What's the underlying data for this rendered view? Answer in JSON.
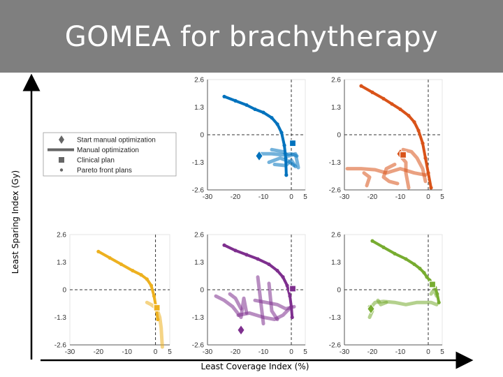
{
  "title": "GOMEA for brachytherapy",
  "y_axis_label": "Least Sparing Index (Gy)",
  "x_axis_label": "Least Coverage Index (%)",
  "legend": {
    "items": [
      {
        "label": "Start manual optimization",
        "marker": "diamond"
      },
      {
        "label": "Manual optimization",
        "marker": "line"
      },
      {
        "label": "Clinical plan",
        "marker": "square"
      },
      {
        "label": "Pareto front plans",
        "marker": "dot"
      }
    ]
  },
  "chart_data": [
    {
      "type": "scatter",
      "panel": "top-left",
      "color": "#0072bd",
      "xlim": [
        -30,
        5
      ],
      "ylim": [
        -2.6,
        2.6
      ],
      "xticks": [
        "-30",
        "-20",
        "-10",
        "0",
        "5"
      ],
      "yticks": [
        "2.6",
        "1.3",
        "0",
        "-1.3",
        "-2.6"
      ],
      "grid": false,
      "show_x_axis": true,
      "show_y_axis": true,
      "pareto_front": [
        [
          -24,
          1.8
        ],
        [
          -20,
          1.6
        ],
        [
          -16,
          1.4
        ],
        [
          -13,
          1.2
        ],
        [
          -10,
          1.05
        ],
        [
          -7,
          0.8
        ],
        [
          -5,
          0.5
        ],
        [
          -3.5,
          0.1
        ],
        [
          -2.5,
          -0.5
        ],
        [
          -2,
          -1.1
        ],
        [
          -1.8,
          -1.9
        ]
      ],
      "manual_optimization": [
        [
          [
            -11,
            -0.9
          ],
          [
            -7,
            -0.9
          ],
          [
            -3,
            -0.95
          ],
          [
            0,
            -0.9
          ],
          [
            2,
            -1.0
          ]
        ],
        [
          [
            -8,
            -1.3
          ],
          [
            -4,
            -1.1
          ],
          [
            -1,
            -1.25
          ],
          [
            1,
            -1.45
          ]
        ],
        [
          [
            -6,
            -1.4
          ],
          [
            -2,
            -1.45
          ],
          [
            0,
            -1.2
          ],
          [
            1.5,
            -1.5
          ]
        ],
        [
          [
            -7,
            -0.7
          ],
          [
            -3,
            -0.8
          ],
          [
            -1,
            -1.0
          ],
          [
            1.5,
            -0.9
          ],
          [
            2.5,
            -1.55
          ]
        ]
      ],
      "start_manual_optimization": [
        -11.5,
        -1.0
      ],
      "clinical_plan": [
        0.5,
        -0.4
      ]
    },
    {
      "type": "scatter",
      "panel": "top-right",
      "color": "#d95319",
      "xlim": [
        -30,
        5
      ],
      "ylim": [
        -2.6,
        2.6
      ],
      "xticks": [
        "-30",
        "-20",
        "-10",
        "0",
        "5"
      ],
      "yticks": [
        "2.6",
        "1.3",
        "0",
        "-1.3",
        "-2.6"
      ],
      "grid": false,
      "show_x_axis": true,
      "show_y_axis": true,
      "pareto_front": [
        [
          -24,
          2.3
        ],
        [
          -20,
          2.0
        ],
        [
          -16,
          1.7
        ],
        [
          -13,
          1.45
        ],
        [
          -10,
          1.2
        ],
        [
          -7,
          0.9
        ],
        [
          -5,
          0.6
        ],
        [
          -3.5,
          0.2
        ],
        [
          -2,
          -0.4
        ],
        [
          -1,
          -1.1
        ],
        [
          0,
          -1.8
        ],
        [
          1,
          -2.5
        ]
      ],
      "manual_optimization": [
        [
          [
            -29,
            -1.6
          ],
          [
            -24,
            -1.6
          ],
          [
            -19,
            -1.65
          ],
          [
            -15,
            -1.8
          ],
          [
            -10,
            -1.6
          ],
          [
            -5,
            -1.8
          ],
          [
            -1,
            -1.9
          ]
        ],
        [
          [
            -23,
            -1.8
          ],
          [
            -21,
            -2.0
          ],
          [
            -22,
            -2.4
          ]
        ],
        [
          [
            -10,
            -1.0
          ],
          [
            -8,
            -1.3
          ],
          [
            -8,
            -1.8
          ],
          [
            -7,
            -2.5
          ]
        ],
        [
          [
            -9,
            -0.7
          ],
          [
            -6,
            -0.8
          ],
          [
            -4,
            -1.1
          ],
          [
            -2,
            -1.6
          ],
          [
            -1,
            -2.2
          ]
        ],
        [
          [
            -12,
            -1.4
          ],
          [
            -15,
            -1.6
          ],
          [
            -16,
            -2.0
          ],
          [
            -14,
            -2.2
          ],
          [
            -11,
            -2.3
          ]
        ]
      ],
      "start_manual_optimization": [
        -10,
        -0.9
      ],
      "clinical_plan": [
        -9,
        -0.95
      ]
    },
    {
      "type": "scatter",
      "panel": "bottom-left",
      "color": "#edb120",
      "xlim": [
        -30,
        5
      ],
      "ylim": [
        -2.6,
        2.6
      ],
      "xticks": [
        "-30",
        "-20",
        "-10",
        "0",
        "5"
      ],
      "yticks": [
        "2.6",
        "1.3",
        "0",
        "-1.3",
        "-2.6"
      ],
      "grid": false,
      "show_x_axis": true,
      "show_y_axis": false,
      "pareto_front": [
        [
          -20,
          1.8
        ],
        [
          -16,
          1.5
        ],
        [
          -12,
          1.2
        ],
        [
          -8,
          0.9
        ],
        [
          -5,
          0.7
        ],
        [
          -3,
          0.5
        ],
        [
          -1.5,
          0.2
        ],
        [
          -0.5,
          -0.3
        ],
        [
          0.3,
          -0.9
        ],
        [
          0.8,
          -1.4
        ]
      ],
      "manual_optimization": [
        [
          [
            -3,
            -0.6
          ],
          [
            -1.5,
            -0.7
          ],
          [
            0.5,
            -0.9
          ],
          [
            1.5,
            -1.3
          ],
          [
            2.0,
            -1.8
          ],
          [
            2.2,
            -2.3
          ],
          [
            2.4,
            -2.7
          ]
        ]
      ],
      "start_manual_optimization": null,
      "clinical_plan": [
        0.5,
        -0.85
      ]
    },
    {
      "type": "scatter",
      "panel": "bottom-middle",
      "color": "#7e2f8e",
      "xlim": [
        -30,
        5
      ],
      "ylim": [
        -2.6,
        2.6
      ],
      "xticks": [
        "-30",
        "-20",
        "-10",
        "0",
        "5"
      ],
      "yticks": [
        "2.6",
        "1.3",
        "0",
        "-1.3",
        "-2.6"
      ],
      "grid": false,
      "show_x_axis": true,
      "show_y_axis": true,
      "pareto_front": [
        [
          -24,
          2.1
        ],
        [
          -20,
          1.85
        ],
        [
          -16,
          1.65
        ],
        [
          -12,
          1.45
        ],
        [
          -8,
          1.2
        ],
        [
          -5,
          0.9
        ],
        [
          -3,
          0.6
        ],
        [
          -1.5,
          0.2
        ],
        [
          -0.5,
          -0.3
        ],
        [
          0,
          -0.8
        ],
        [
          0.3,
          -1.3
        ]
      ],
      "manual_optimization": [
        [
          [
            -27,
            -0.3
          ],
          [
            -24,
            -0.5
          ],
          [
            -21,
            -0.8
          ],
          [
            -18,
            -1.3
          ],
          [
            -17,
            -0.4
          ],
          [
            -16,
            -1.1
          ]
        ],
        [
          [
            -19,
            -1.2
          ],
          [
            -15,
            -1.1
          ],
          [
            -10,
            -1.3
          ],
          [
            -6,
            -1.4
          ],
          [
            -3,
            -1.2
          ],
          [
            0,
            -0.8
          ]
        ],
        [
          [
            -12,
            0.6
          ],
          [
            -11,
            -0.5
          ],
          [
            -10,
            -1.6
          ]
        ],
        [
          [
            -13,
            -0.5
          ],
          [
            -9,
            -0.6
          ],
          [
            -5,
            -0.7
          ],
          [
            -2,
            -0.9
          ],
          [
            1,
            -0.8
          ]
        ],
        [
          [
            -8,
            0.3
          ],
          [
            -7,
            -1.0
          ],
          [
            -5,
            -1.4
          ]
        ],
        [
          [
            -22,
            -0.2
          ],
          [
            -20,
            -0.4
          ],
          [
            -18,
            -0.9
          ]
        ]
      ],
      "start_manual_optimization": [
        -18,
        -1.9
      ],
      "clinical_plan": [
        0.5,
        0.05
      ]
    },
    {
      "type": "scatter",
      "panel": "bottom-right",
      "color": "#77ac30",
      "xlim": [
        -30,
        5
      ],
      "ylim": [
        -2.6,
        2.6
      ],
      "xticks": [
        "-30",
        "-20",
        "-10",
        "0",
        "5"
      ],
      "yticks": [
        "2.6",
        "1.3",
        "0",
        "-1.3",
        "-2.6"
      ],
      "grid": false,
      "show_x_axis": true,
      "show_y_axis": true,
      "pareto_front": [
        [
          -20,
          2.3
        ],
        [
          -16,
          2.0
        ],
        [
          -12,
          1.7
        ],
        [
          -8,
          1.45
        ],
        [
          -5,
          1.2
        ],
        [
          -3,
          1.0
        ],
        [
          -1.5,
          0.8
        ],
        [
          -0.5,
          0.6
        ],
        [
          0.5,
          0.45
        ],
        [
          1.5,
          0.3
        ],
        [
          2.5,
          0.1
        ],
        [
          3.2,
          -0.2
        ],
        [
          3.8,
          -0.6
        ]
      ],
      "manual_optimization": [
        [
          [
            -21,
            -0.9
          ],
          [
            -19,
            -0.6
          ],
          [
            -16,
            -0.55
          ],
          [
            -12,
            -0.6
          ],
          [
            -8,
            -0.7
          ],
          [
            -4,
            -0.6
          ],
          [
            1,
            -0.6
          ],
          [
            3,
            -0.7
          ]
        ],
        [
          [
            -21,
            -0.8
          ],
          [
            -20,
            -1.0
          ],
          [
            -21,
            -1.3
          ]
        ],
        [
          [
            -18,
            -0.5
          ],
          [
            -17,
            -0.7
          ],
          [
            -15,
            -0.6
          ]
        ],
        [
          [
            1,
            -0.2
          ],
          [
            2,
            0.0
          ],
          [
            3,
            -0.3
          ]
        ]
      ],
      "start_manual_optimization": [
        -20.5,
        -0.9
      ],
      "clinical_plan": [
        1.5,
        0.25
      ]
    }
  ]
}
